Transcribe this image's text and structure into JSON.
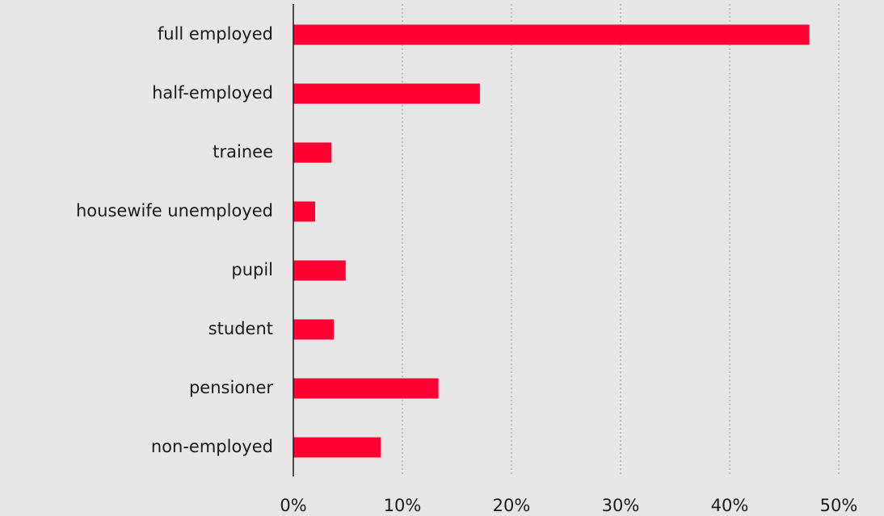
{
  "chart_data": {
    "type": "bar",
    "orientation": "horizontal",
    "categories": [
      "full employed",
      "half-employed",
      "trainee",
      "housewife unemployed",
      "pupil",
      "student",
      "pensioner",
      "non-employed"
    ],
    "values": [
      47.3,
      17.1,
      3.5,
      2.0,
      4.8,
      3.7,
      13.3,
      8.0
    ],
    "xlim": [
      0,
      50
    ],
    "xticks": [
      0,
      10,
      20,
      30,
      40,
      50
    ],
    "xtick_labels": [
      "0%",
      "10%",
      "20%",
      "30%",
      "40%",
      "50%"
    ],
    "title": "",
    "xlabel": "",
    "ylabel": "",
    "grid": "vertical dotted",
    "bar_color": "#ff0033",
    "background_color": "#e6e6e6"
  }
}
